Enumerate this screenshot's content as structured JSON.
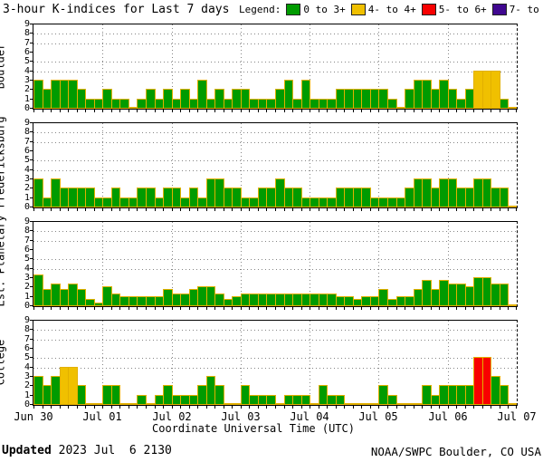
{
  "title": "3-hour K-indices for Last 7 days",
  "legend": {
    "label": "Legend:",
    "items": [
      {
        "label": "0 to 3+",
        "color": "#009b00"
      },
      {
        "label": "4- to 4+",
        "color": "#f0c000"
      },
      {
        "label": "5- to 6+",
        "color": "#f80000"
      },
      {
        "label": "7- to 9",
        "color": "#400890"
      }
    ]
  },
  "xlabel": "Coordinate Universal Time (UTC)",
  "footer": {
    "updated_label": "Updated",
    "updated_value": " 2023 Jul  6 2130",
    "credit": "NOAA/SWPC Boulder, CO USA"
  },
  "chart_data": {
    "type": "bar",
    "title": "3-hour K-indices for Last 7 days",
    "xlabel": "Coordinate Universal Time (UTC)",
    "x_tick_labels": [
      "Jun 30",
      "Jul 01",
      "Jul 02",
      "Jul 03",
      "Jul 04",
      "Jul 05",
      "Jul 06",
      "Jul 07"
    ],
    "bar_interval_hours": 3,
    "bars_per_day": 8,
    "ylim": [
      0,
      9
    ],
    "y_tick_labels": [
      "0",
      "1",
      "2",
      "3",
      "4",
      "5",
      "6",
      "7",
      "8",
      "9"
    ],
    "y_gridlines": [
      4,
      5,
      7,
      8
    ],
    "grid": true,
    "legend_position": "top-right",
    "bar_outline_color": "#e2b000",
    "color_thresholds": [
      {
        "max": 3.5,
        "color": "#009b00"
      },
      {
        "max": 4.67,
        "color": "#f0c000"
      },
      {
        "max": 6.67,
        "color": "#f80000"
      },
      {
        "max": 9.1,
        "color": "#400890"
      }
    ],
    "series": [
      {
        "name": "Boulder",
        "values": [
          3,
          2,
          3,
          3,
          3,
          2,
          1,
          1,
          2,
          1,
          1,
          0,
          1,
          2,
          1,
          2,
          1,
          2,
          1,
          3,
          1,
          2,
          1,
          2,
          2,
          1,
          1,
          1,
          2,
          3,
          1,
          3,
          1,
          1,
          1,
          2,
          2,
          2,
          2,
          2,
          2,
          1,
          0,
          2,
          3,
          3,
          2,
          3,
          2,
          1,
          2,
          4,
          4,
          4,
          1,
          0
        ]
      },
      {
        "name": "Fredericksburg",
        "values": [
          3,
          1,
          3,
          2,
          2,
          2,
          2,
          1,
          1,
          2,
          1,
          1,
          2,
          2,
          1,
          2,
          2,
          1,
          2,
          1,
          3,
          3,
          2,
          2,
          1,
          1,
          2,
          2,
          3,
          2,
          2,
          1,
          1,
          1,
          1,
          2,
          2,
          2,
          2,
          1,
          1,
          1,
          1,
          2,
          3,
          3,
          2,
          3,
          3,
          2,
          2,
          3,
          3,
          2,
          2,
          0
        ]
      },
      {
        "name": "Est. Planetary",
        "values": [
          3.3,
          1.7,
          2.3,
          1.7,
          2.3,
          1.7,
          0.7,
          0.3,
          2,
          1.3,
          1,
          1,
          1,
          1,
          1,
          1.7,
          1.3,
          1.3,
          1.7,
          2,
          2,
          1.3,
          0.7,
          1,
          1.3,
          1.3,
          1.3,
          1.3,
          1.3,
          1.3,
          1.3,
          1.3,
          1.3,
          1.3,
          1.3,
          1,
          1,
          0.7,
          1,
          1,
          1.7,
          0.7,
          1,
          1,
          1.7,
          2.7,
          1.7,
          2.7,
          2.3,
          2.3,
          2,
          3,
          3,
          2.3,
          2.3,
          0
        ]
      },
      {
        "name": "College",
        "values": [
          3,
          2,
          3,
          4,
          4,
          2,
          0,
          0,
          2,
          2,
          0,
          0,
          1,
          0,
          1,
          2,
          1,
          1,
          1,
          2,
          3,
          2,
          0,
          0,
          2,
          1,
          1,
          1,
          0,
          1,
          1,
          1,
          0,
          2,
          1,
          1,
          0,
          0,
          0,
          0,
          2,
          1,
          0,
          0,
          0,
          2,
          1,
          2,
          2,
          2,
          2,
          5,
          5,
          3,
          2,
          0
        ]
      }
    ]
  }
}
